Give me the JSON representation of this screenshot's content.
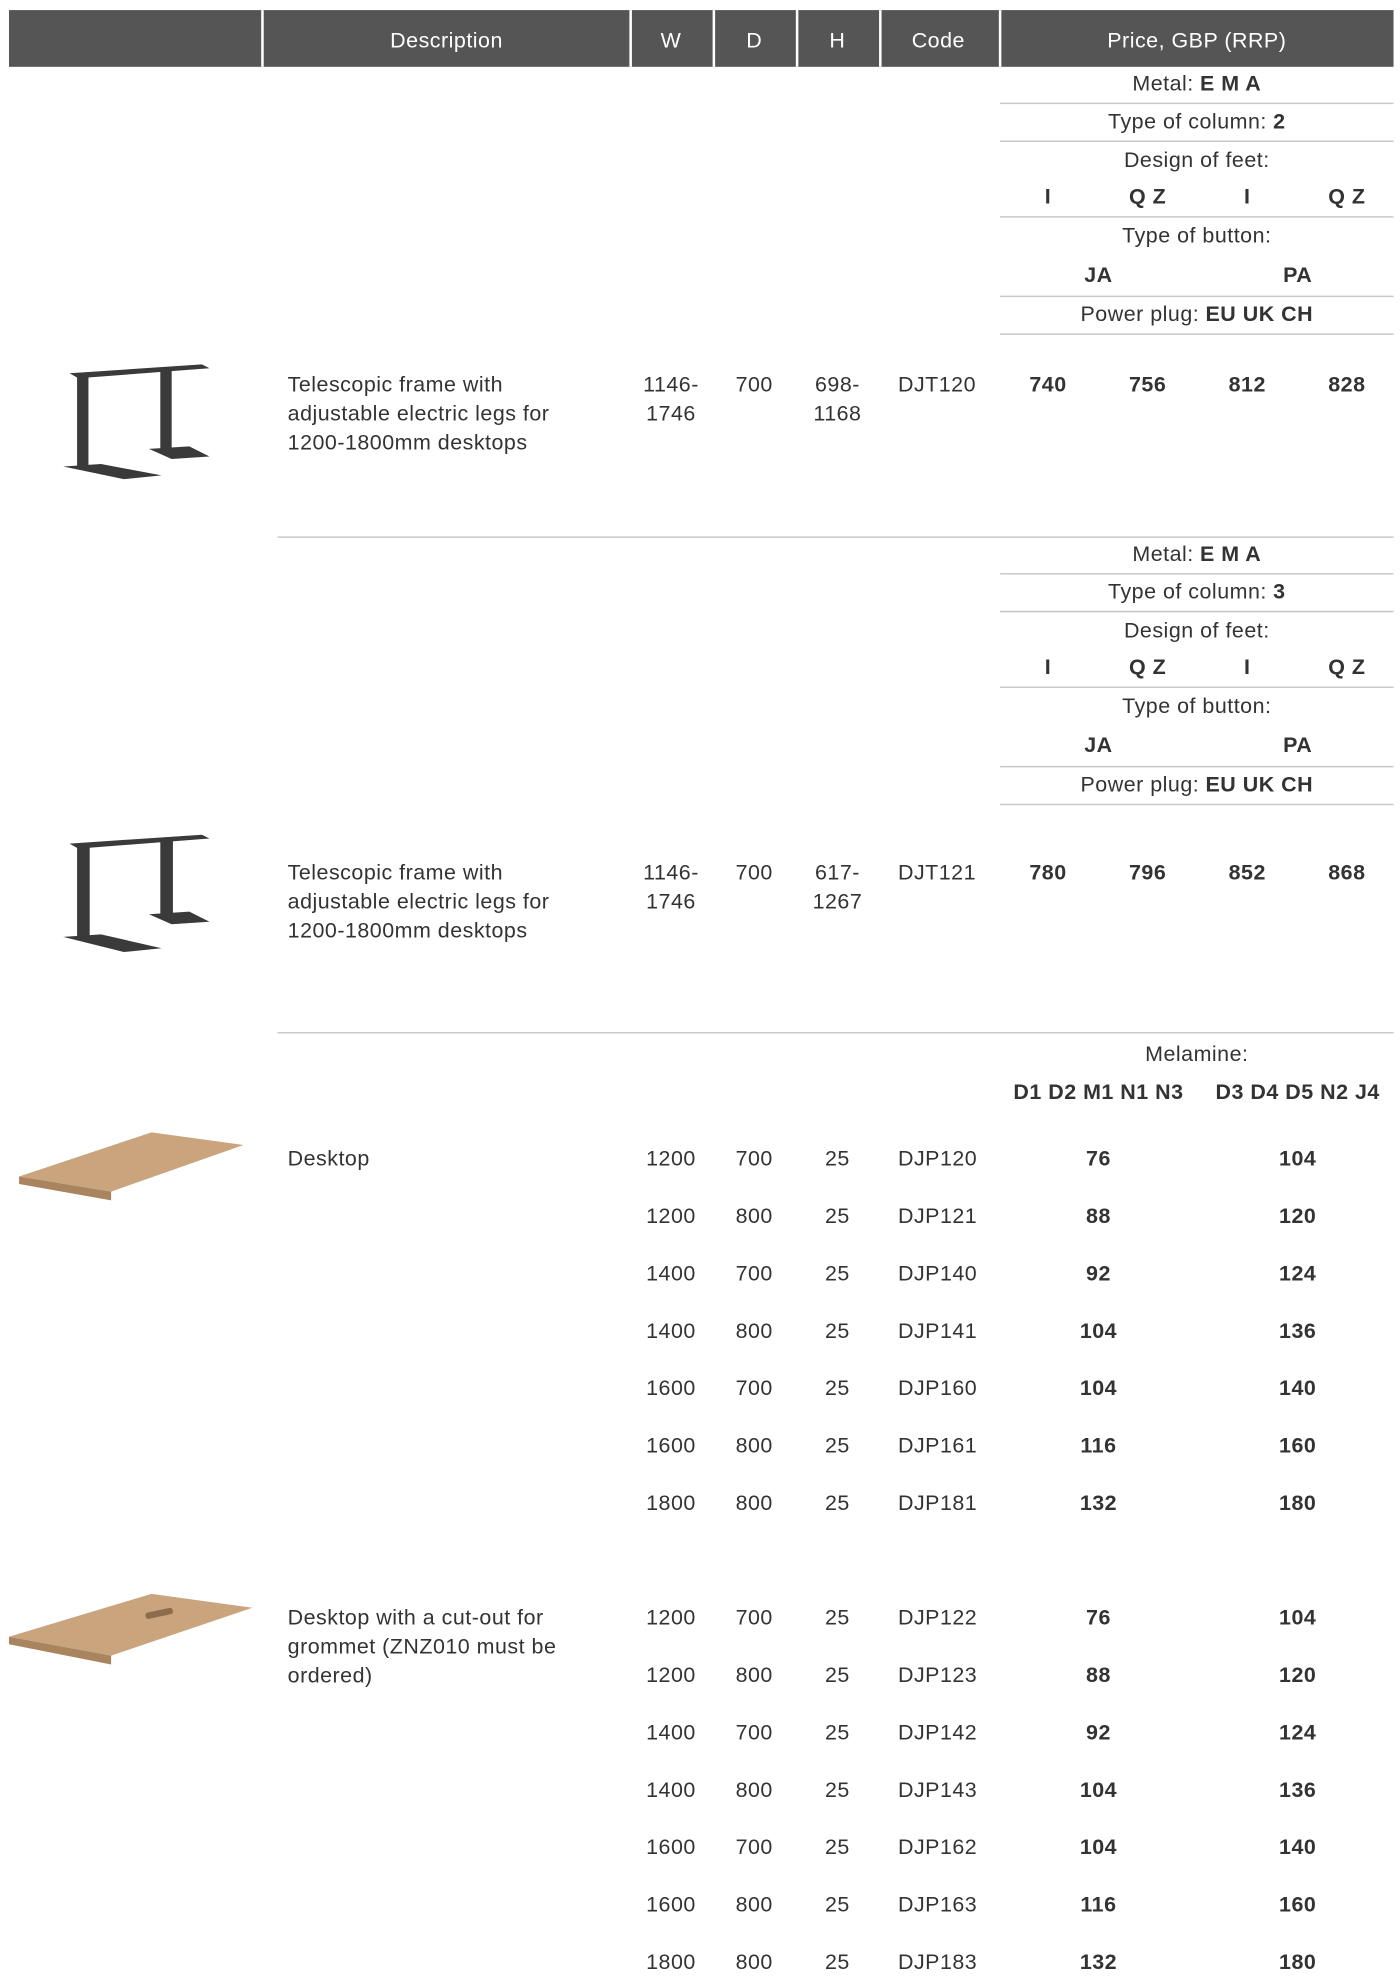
{
  "header": [
    "Description",
    "W",
    "D",
    "H",
    "Code",
    "Price, GBP (RRP)"
  ],
  "frames": [
    {
      "options": {
        "metal": [
          "Metal:",
          "E M A"
        ],
        "column": [
          "Type of column:",
          "2"
        ],
        "feet": [
          "Design of feet:",
          "I",
          "Q Z",
          "I",
          "Q Z"
        ],
        "button": [
          "Type of button:",
          "JA",
          "PA"
        ],
        "plug": [
          "Power plug:",
          "EU UK CH"
        ]
      },
      "description": [
        "Telescopic frame with",
        "adjustable electric legs for",
        "1200-1800mm desktops"
      ],
      "w": [
        "1146-",
        "1746"
      ],
      "d": 700,
      "h": [
        "698-",
        "1168"
      ],
      "code": "DJT120",
      "prices": [
        740,
        756,
        812,
        828
      ]
    },
    {
      "options": {
        "metal": [
          "Metal:",
          "E M A"
        ],
        "column": [
          "Type of column:",
          "3"
        ],
        "feet": [
          "Design of feet:",
          "I",
          "Q Z",
          "I",
          "Q Z"
        ],
        "button": [
          "Type of button:",
          "JA",
          "PA"
        ],
        "plug": [
          "Power plug:",
          "EU UK CH"
        ]
      },
      "description": [
        "Telescopic frame with",
        "adjustable electric legs for",
        "1200-1800mm desktops"
      ],
      "w": [
        "1146-",
        "1746"
      ],
      "d": 700,
      "h": [
        "617-",
        "1267"
      ],
      "code": "DJT121",
      "prices": [
        780,
        796,
        852,
        868
      ]
    }
  ],
  "melamine": [
    "Melamine:",
    "D1 D2 M1 N1 N3",
    "D3 D4 D5 N2 J4"
  ],
  "desktops": [
    {
      "description": [
        "Desktop"
      ],
      "rows": [
        [
          1200,
          700,
          25,
          "DJP120",
          76,
          104
        ],
        [
          1200,
          800,
          25,
          "DJP121",
          88,
          120
        ],
        [
          1400,
          700,
          25,
          "DJP140",
          92,
          124
        ],
        [
          1400,
          800,
          25,
          "DJP141",
          104,
          136
        ],
        [
          1600,
          700,
          25,
          "DJP160",
          104,
          140
        ],
        [
          1600,
          800,
          25,
          "DJP161",
          116,
          160
        ],
        [
          1800,
          800,
          25,
          "DJP181",
          132,
          180
        ]
      ]
    },
    {
      "description": [
        "Desktop with a cut-out for",
        "grommet (ZNZ010 must be",
        "ordered)"
      ],
      "rows": [
        [
          1200,
          700,
          25,
          "DJP122",
          76,
          104
        ],
        [
          1200,
          800,
          25,
          "DJP123",
          88,
          120
        ],
        [
          1400,
          700,
          25,
          "DJP142",
          92,
          124
        ],
        [
          1400,
          800,
          25,
          "DJP143",
          104,
          136
        ],
        [
          1600,
          700,
          25,
          "DJP162",
          104,
          140
        ],
        [
          1600,
          800,
          25,
          "DJP163",
          116,
          160
        ],
        [
          1800,
          800,
          25,
          "DJP183",
          132,
          180
        ]
      ]
    }
  ]
}
